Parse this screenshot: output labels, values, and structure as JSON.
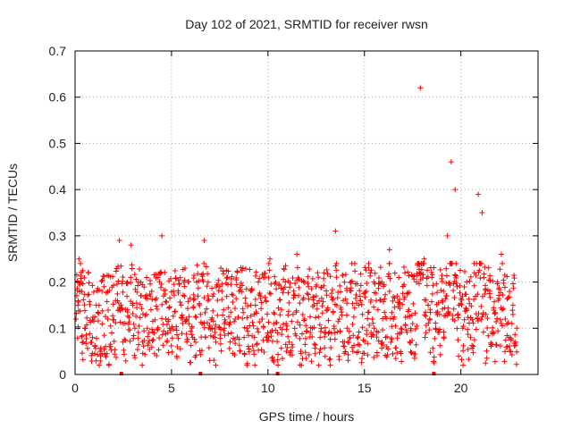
{
  "chart_data": {
    "type": "scatter",
    "title": "Day 102 of 2021, SRMTID for receiver rwsn",
    "xlabel": "GPS time / hours",
    "ylabel": "SRMTID / TECUs",
    "xlim": [
      0,
      24
    ],
    "ylim": [
      0,
      0.7
    ],
    "xticks": [
      "0",
      "5",
      "10",
      "15",
      "20"
    ],
    "xtick_values": [
      0,
      5,
      10,
      15,
      20
    ],
    "yticks": [
      "0",
      "0.1",
      "0.2",
      "0.3",
      "0.4",
      "0.5",
      "0.6",
      "0.7"
    ],
    "ytick_values": [
      0,
      0.1,
      0.2,
      0.3,
      0.4,
      0.5,
      0.6,
      0.7
    ],
    "grid": true,
    "series_color": "#ff0000",
    "marker": "plus",
    "baseline_markers_x": [
      2.4,
      6.5,
      10.5,
      18.6
    ],
    "series": [
      {
        "name": "SRMTID",
        "description": "dense band of points mostly between 0.03 and 0.25 TECU over 0-23 h",
        "x": [
          0.05,
          0.2,
          0.35,
          0.5,
          0.7,
          0.9,
          1.1,
          1.3,
          1.5,
          1.7,
          1.9,
          2.1,
          2.3,
          2.5,
          2.7,
          2.9,
          3.1,
          3.3,
          3.5,
          3.7,
          3.9,
          4.1,
          4.3,
          4.5,
          4.7,
          4.9,
          5.1,
          5.3,
          5.5,
          5.7,
          5.9,
          6.1,
          6.3,
          6.5,
          6.7,
          6.9,
          7.1,
          7.3,
          7.5,
          7.7,
          7.9,
          8.1,
          8.3,
          8.5,
          8.7,
          8.9,
          9.1,
          9.3,
          9.5,
          9.7,
          9.9,
          10.1,
          10.3,
          10.5,
          10.7,
          10.9,
          11.1,
          11.3,
          11.5,
          11.7,
          11.9,
          12.1,
          12.3,
          12.5,
          12.7,
          12.9,
          13.1,
          13.3,
          13.5,
          13.7,
          13.9,
          14.1,
          14.3,
          14.5,
          14.7,
          14.9,
          15.1,
          15.3,
          15.5,
          15.7,
          15.9,
          16.1,
          16.3,
          16.5,
          16.7,
          16.9,
          17.1,
          17.3,
          17.5,
          17.7,
          17.9,
          18.1,
          18.3,
          18.5,
          18.7,
          18.9,
          19.1,
          19.3,
          19.5,
          19.7,
          19.9,
          20.1,
          20.3,
          20.5,
          20.7,
          20.9,
          21.1,
          21.3,
          21.5,
          21.7,
          21.9,
          22.1,
          22.3,
          22.5,
          22.7,
          22.9
        ],
        "y": [
          0.12,
          0.25,
          0.18,
          0.1,
          0.22,
          0.08,
          0.15,
          0.05,
          0.19,
          0.12,
          0.09,
          0.16,
          0.29,
          0.11,
          0.14,
          0.28,
          0.1,
          0.2,
          0.07,
          0.13,
          0.17,
          0.09,
          0.21,
          0.3,
          0.12,
          0.1,
          0.18,
          0.06,
          0.15,
          0.23,
          0.11,
          0.08,
          0.2,
          0.13,
          0.29,
          0.16,
          0.1,
          0.07,
          0.19,
          0.14,
          0.21,
          0.09,
          0.12,
          0.18,
          0.23,
          0.1,
          0.15,
          0.08,
          0.2,
          0.12,
          0.16,
          0.25,
          0.11,
          0.09,
          0.14,
          0.2,
          0.07,
          0.13,
          0.26,
          0.05,
          0.12,
          0.19,
          0.1,
          0.17,
          0.08,
          0.22,
          0.14,
          0.09,
          0.31,
          0.12,
          0.16,
          0.1,
          0.2,
          0.24,
          0.15,
          0.13,
          0.18,
          0.22,
          0.1,
          0.14,
          0.2,
          0.08,
          0.27,
          0.12,
          0.17,
          0.1,
          0.22,
          0.14,
          0.11,
          0.2,
          0.62,
          0.25,
          0.15,
          0.21,
          0.1,
          0.13,
          0.18,
          0.3,
          0.46,
          0.4,
          0.15,
          0.1,
          0.2,
          0.08,
          0.22,
          0.39,
          0.35,
          0.13,
          0.18,
          0.09,
          0.2,
          0.26,
          0.12,
          0.08,
          0.15,
          0.1
        ]
      }
    ]
  }
}
